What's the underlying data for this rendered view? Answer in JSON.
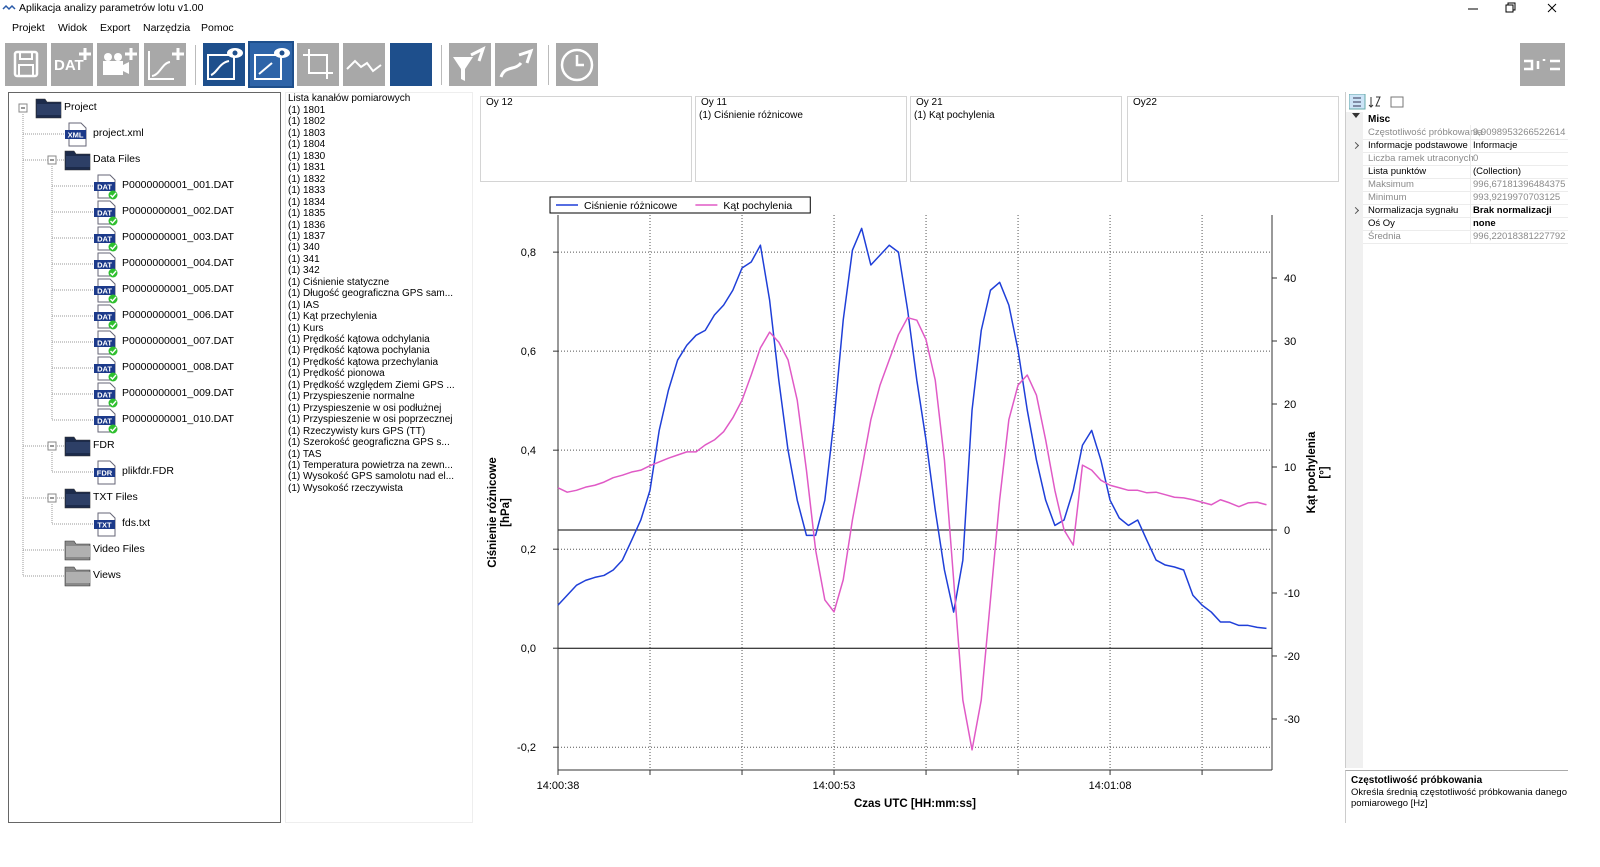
{
  "window": {
    "title": "Aplikacja analizy parametrów lotu v1.00"
  },
  "menu": [
    "Projekt",
    "Widok",
    "Export",
    "Narzędzia",
    "Pomoc"
  ],
  "toolbar": {
    "badge": "DAT"
  },
  "tree": {
    "nodes": [
      {
        "label": "Project",
        "depth": 0,
        "icon": "folder",
        "expanded": true
      },
      {
        "label": "project.xml",
        "depth": 1,
        "badge": "XML"
      },
      {
        "label": "Data Files",
        "depth": 1,
        "icon": "folder",
        "expanded": true
      },
      {
        "label": "P0000000001_001.DAT",
        "depth": 2,
        "badge": "DAT",
        "checked": true
      },
      {
        "label": "P0000000001_002.DAT",
        "depth": 2,
        "badge": "DAT",
        "checked": true
      },
      {
        "label": "P0000000001_003.DAT",
        "depth": 2,
        "badge": "DAT",
        "checked": true
      },
      {
        "label": "P0000000001_004.DAT",
        "depth": 2,
        "badge": "DAT",
        "checked": true
      },
      {
        "label": "P0000000001_005.DAT",
        "depth": 2,
        "badge": "DAT",
        "checked": true
      },
      {
        "label": "P0000000001_006.DAT",
        "depth": 2,
        "badge": "DAT",
        "checked": true
      },
      {
        "label": "P0000000001_007.DAT",
        "depth": 2,
        "badge": "DAT",
        "checked": true
      },
      {
        "label": "P0000000001_008.DAT",
        "depth": 2,
        "badge": "DAT",
        "checked": true
      },
      {
        "label": "P0000000001_009.DAT",
        "depth": 2,
        "badge": "DAT",
        "checked": true
      },
      {
        "label": "P0000000001_010.DAT",
        "depth": 2,
        "badge": "DAT",
        "checked": true
      },
      {
        "label": "FDR",
        "depth": 1,
        "icon": "folder",
        "expanded": true
      },
      {
        "label": "plikfdr.FDR",
        "depth": 2,
        "badge": "FDR"
      },
      {
        "label": "TXT Files",
        "depth": 1,
        "icon": "folder",
        "expanded": true
      },
      {
        "label": "fds.txt",
        "depth": 2,
        "badge": "TXT"
      },
      {
        "label": "Video Files",
        "depth": 1,
        "icon": "folder-grey"
      },
      {
        "label": "Views",
        "depth": 1,
        "icon": "folder-grey"
      }
    ]
  },
  "channels": {
    "title": "Lista kanałów pomiarowych",
    "items": [
      "(1) 1801",
      "(1) 1802",
      "(1) 1803",
      "(1) 1804",
      "(1) 1830",
      "(1) 1831",
      "(1) 1832",
      "(1) 1833",
      "(1) 1834",
      "(1) 1835",
      "(1) 1836",
      "(1) 1837",
      "(1) 340",
      "(1) 341",
      "(1) 342",
      "(1) Ciśnienie statyczne",
      "(1) Długość geograficzna GPS sam...",
      "(1) IAS",
      "(1) Kąt przechylenia",
      "(1) Kurs",
      "(1) Prędkość kątowa odchylania",
      "(1) Prędkość kątowa pochylania",
      "(1) Prędkość kątowa przechylania",
      "(1) Prędkość pionowa",
      "(1) Prędkość względem Ziemi GPS ...",
      "(1) Przyspieszenie normalne",
      "(1) Przyspieszenie w osi podłużnej",
      "(1) Przyspieszenie w osi poprzecznej",
      "(1) Rzeczywisty kurs GPS (TT)",
      "(1) Szerokość geograficzna GPS s...",
      "(1) TAS",
      "(1) Temperatura powietrza na zewn...",
      "(1) Wysokość GPS samolotu nad el...",
      "(1) Wysokość rzeczywista"
    ]
  },
  "axis_panels": [
    {
      "title": "Oy 12",
      "items": []
    },
    {
      "title": "Oy 11",
      "items": [
        "(1) Ciśnienie różnicowe"
      ]
    },
    {
      "title": "Oy 21",
      "items": [
        "(1) Kąt pochylenia"
      ]
    },
    {
      "title": "Oy22",
      "items": []
    }
  ],
  "chart_data": {
    "type": "line",
    "xlabel": "Czas UTC [HH:mm:ss]",
    "ylabel": [
      "Ciśnienie różnicowe",
      "[hPa]"
    ],
    "y2label": [
      "Kąt pochylenia",
      "[°]"
    ],
    "legend": "top",
    "grid": true,
    "zero_lines": true,
    "x": [
      50438,
      50438.5,
      50439,
      50439.5,
      50440,
      50440.5,
      50441,
      50441.5,
      50442,
      50442.5,
      50443,
      50443.5,
      50444,
      50444.5,
      50445,
      50445.5,
      50446,
      50446.5,
      50447,
      50447.5,
      50448,
      50448.5,
      50449,
      50449.5,
      50450,
      50450.5,
      50451,
      50451.5,
      50452,
      50452.5,
      50453,
      50453.5,
      50454,
      50454.5,
      50455,
      50455.5,
      50456,
      50456.5,
      50457,
      50457.5,
      50458,
      50458.5,
      50459,
      50459.5,
      50460,
      50460.5,
      50461,
      50461.5,
      50462,
      50462.5,
      50463,
      50463.5,
      50464,
      50464.5,
      50465,
      50465.5,
      50466,
      50466.5,
      50467,
      50467.5,
      50468,
      50468.5,
      50469,
      50469.5,
      50470,
      50470.5,
      50471,
      50471.5,
      50472,
      50472.5,
      50473,
      50473.5,
      50474,
      50474.5,
      50475,
      50475.5,
      50476,
      50476.5
    ],
    "xlim": [
      50438,
      50476.8
    ],
    "xticks": [
      {
        "value": 50438,
        "label": "14:00:38"
      },
      {
        "value": 50443,
        "label": null
      },
      {
        "value": 50448,
        "label": null
      },
      {
        "value": 50453,
        "label": "14:00:53"
      },
      {
        "value": 50458,
        "label": null
      },
      {
        "value": 50463,
        "label": null
      },
      {
        "value": 50468,
        "label": "14:01:08"
      },
      {
        "value": 50473,
        "label": null
      }
    ],
    "ylim": [
      -0.246,
      0.875
    ],
    "yticks": [
      {
        "value": -0.2,
        "label": "-0,2"
      },
      {
        "value": 0,
        "label": "0,0"
      },
      {
        "value": 0.2,
        "label": "0,2"
      },
      {
        "value": 0.4,
        "label": "0,4"
      },
      {
        "value": 0.6,
        "label": "0,6"
      },
      {
        "value": 0.8,
        "label": "0,8"
      }
    ],
    "y2lim": [
      -38.1,
      50
    ],
    "y2ticks": [
      -30,
      -20,
      -10,
      0,
      10,
      20,
      30,
      40
    ],
    "series": [
      {
        "name": "Ciśnienie różnicowe",
        "color": "#1f3fd8",
        "axis": "y",
        "values": [
          0.087,
          0.107,
          0.127,
          0.137,
          0.143,
          0.147,
          0.158,
          0.178,
          0.218,
          0.259,
          0.319,
          0.44,
          0.521,
          0.582,
          0.612,
          0.632,
          0.642,
          0.673,
          0.693,
          0.723,
          0.768,
          0.78,
          0.814,
          0.703,
          0.541,
          0.4,
          0.299,
          0.228,
          0.228,
          0.299,
          0.461,
          0.663,
          0.804,
          0.848,
          0.774,
          0.794,
          0.814,
          0.8,
          0.683,
          0.541,
          0.42,
          0.279,
          0.158,
          0.073,
          0.178,
          0.481,
          0.642,
          0.723,
          0.739,
          0.693,
          0.602,
          0.481,
          0.38,
          0.299,
          0.248,
          0.259,
          0.319,
          0.41,
          0.44,
          0.38,
          0.299,
          0.263,
          0.248,
          0.259,
          0.218,
          0.178,
          0.168,
          0.164,
          0.158,
          0.107,
          0.087,
          0.073,
          0.053,
          0.053,
          0.046,
          0.046,
          0.042,
          0.04
        ]
      },
      {
        "name": "Kąt pochylenia",
        "color": "#e05ac6",
        "axis": "y2",
        "values": [
          6.7,
          6.0,
          6.3,
          6.8,
          7.1,
          7.6,
          8.3,
          8.7,
          9.2,
          9.5,
          10.2,
          10.8,
          11.4,
          11.9,
          12.4,
          12.4,
          13.5,
          14.3,
          15.6,
          17.8,
          20.6,
          24.6,
          28.9,
          31.4,
          29.8,
          27.0,
          20.6,
          9.5,
          -3.2,
          -11.1,
          -13.0,
          -7.9,
          1.6,
          9.5,
          17.5,
          23.0,
          27.0,
          31.0,
          33.7,
          33.3,
          30.2,
          23.8,
          11.1,
          -7.9,
          -27.0,
          -34.9,
          -27.0,
          -11.1,
          4.8,
          17.5,
          23.0,
          24.6,
          21.4,
          14.3,
          6.3,
          0.0,
          -2.4,
          10.3,
          9.5,
          7.9,
          7.1,
          6.7,
          6.3,
          6.3,
          5.9,
          6.0,
          5.6,
          5.2,
          5.1,
          4.8,
          4.4,
          4.0,
          4.8,
          4.3,
          3.7,
          4.3,
          4.4,
          4.0
        ]
      }
    ]
  },
  "properties": {
    "section": "Misc",
    "rows": [
      {
        "name": "Częstotliwość próbkowania",
        "value": "9,9098953266522614",
        "readonly": true
      },
      {
        "name": "Informacje podstawowe",
        "value": "Informacje",
        "expandable": true
      },
      {
        "name": "Liczba ramek utraconych",
        "value": "0",
        "readonly": true
      },
      {
        "name": "Lista punktów",
        "value": "(Collection)"
      },
      {
        "name": "Maksimum",
        "value": "996,67181396484375",
        "readonly": true
      },
      {
        "name": "Minimum",
        "value": "993,9219970703125",
        "readonly": true
      },
      {
        "name": "Normalizacja sygnału",
        "value": "Brak normalizacji",
        "expandable": true,
        "bold": true
      },
      {
        "name": "Oś Oy",
        "value": "none",
        "bold": true
      },
      {
        "name": "Średnia",
        "value": "996,22018381227792",
        "readonly": true
      }
    ],
    "description": {
      "title": "Częstotliwość próbkowania",
      "lines": [
        "Określa średnią częstotliwość próbkowania danego kanału",
        "pomiarowego [Hz]"
      ]
    }
  }
}
